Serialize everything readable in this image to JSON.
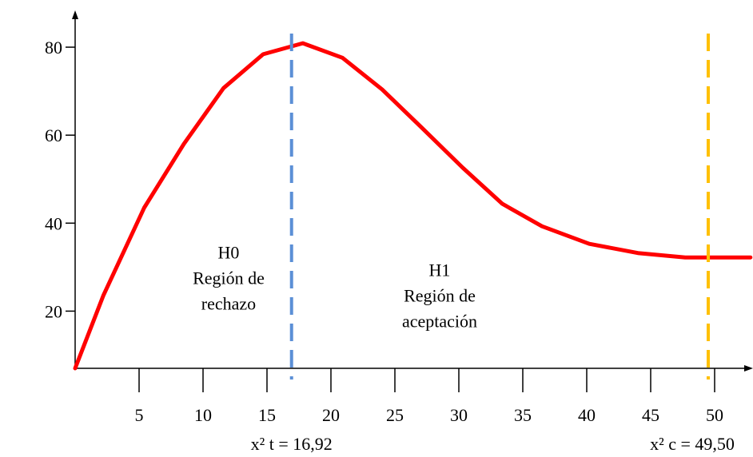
{
  "chart_data": {
    "type": "line",
    "x": [
      0,
      2.2,
      5.4,
      8.5,
      11.6,
      14.7,
      17.8,
      20.9,
      24.0,
      27.1,
      30.3,
      33.4,
      36.5,
      40.2,
      44.0,
      47.7,
      52.8
    ],
    "series": [
      {
        "color": "#ff0000",
        "values": [
          7,
          23.5,
          43.5,
          58,
          70.7,
          78.4,
          80.9,
          77.6,
          70.4,
          61.7,
          52.6,
          44.4,
          39.3,
          35.3,
          33.2,
          32.2,
          32.2
        ]
      }
    ],
    "xlim": [
      0,
      53
    ],
    "ylim": [
      7,
      88
    ],
    "xticks": [
      5,
      10,
      15,
      20,
      25,
      30,
      35,
      40,
      45,
      50
    ],
    "yticks": [
      20,
      40,
      60,
      80
    ],
    "critical_lines": [
      {
        "x": 16.92,
        "label": "x² t = 16,92",
        "color": "#5b8fd6"
      },
      {
        "x": 49.5,
        "label": "x² c = 49,50",
        "color": "#ffc000"
      }
    ],
    "annotations": [
      {
        "x": 12,
        "y": 32,
        "lines": [
          "H0",
          "Región de",
          "rechazo"
        ]
      },
      {
        "x": 28.5,
        "y": 28,
        "lines": [
          "H1",
          "Región de",
          "aceptación"
        ]
      }
    ]
  }
}
